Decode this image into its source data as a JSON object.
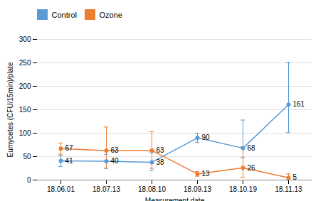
{
  "chart_data": {
    "type": "line",
    "xlabel": "Measurement date",
    "ylabel": "Eumycetes (CFU/15min)/plate",
    "categories": [
      "18.06.01",
      "18.07.13",
      "18.08.10",
      "18.09.13",
      "18.10.19",
      "18.11.13"
    ],
    "series": [
      {
        "name": "Control",
        "color": "#5B9BD5",
        "values": [
          41,
          40,
          38,
          90,
          68,
          161
        ],
        "errors_up": [
          12,
          15,
          20,
          10,
          60,
          90
        ],
        "errors_down": [
          12,
          15,
          18,
          10,
          20,
          60
        ]
      },
      {
        "name": "Ozone",
        "color": "#ED7D31",
        "values": [
          67,
          63,
          63,
          13,
          26,
          5
        ],
        "errors_up": [
          12,
          50,
          40,
          5,
          45,
          8
        ],
        "errors_down": [
          12,
          38,
          38,
          5,
          20,
          4
        ]
      }
    ],
    "ylim": [
      0,
      300
    ],
    "yticks": [
      0,
      50,
      100,
      150,
      200,
      250,
      300
    ],
    "grid": true,
    "legend": "upper left",
    "data_labels": true,
    "marker": "circle",
    "line_style": "solid"
  }
}
